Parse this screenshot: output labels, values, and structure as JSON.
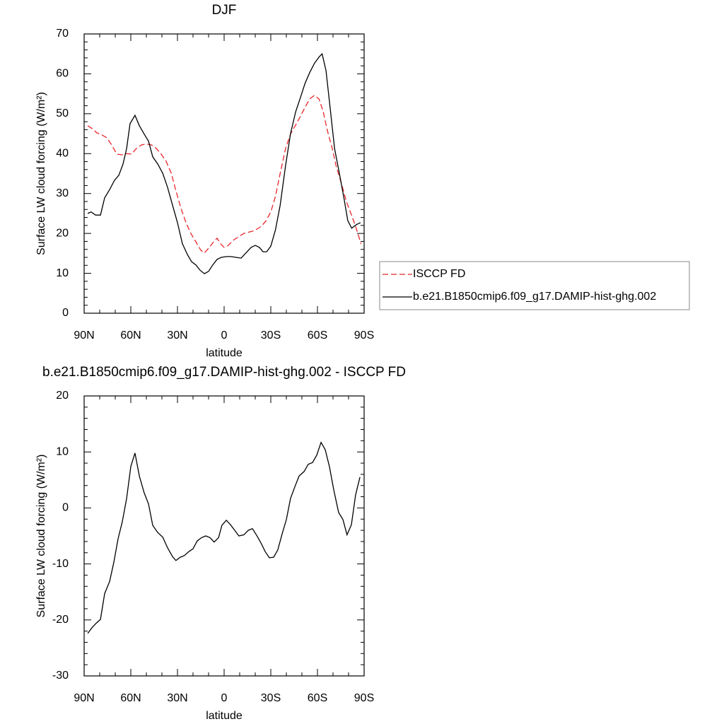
{
  "chart_data": [
    {
      "type": "line",
      "title": "DJF",
      "xlabel": "latitude",
      "ylabel": "Surface LW cloud forcing (W/m²)",
      "xlim": [
        90,
        -90
      ],
      "xticks": [
        {
          "value": 90,
          "label": "90N"
        },
        {
          "value": 60,
          "label": "60N"
        },
        {
          "value": 30,
          "label": "30N"
        },
        0,
        {
          "value": -30,
          "label": "30S"
        },
        {
          "value": -60,
          "label": "60S"
        },
        {
          "value": -90,
          "label": "90S"
        }
      ],
      "ylim": [
        0,
        70
      ],
      "yticks": [
        0,
        10,
        20,
        30,
        40,
        50,
        60,
        70
      ],
      "legend": "right",
      "series": [
        {
          "name": "ISCCP FD",
          "color": "#e8262b",
          "dash": true,
          "x": [
            87.7,
            85,
            81.8,
            78.6,
            75.5,
            72.3,
            69,
            66,
            62.7,
            59.5,
            56.4,
            53,
            50,
            46.8,
            43.6,
            40.5,
            37.3,
            34,
            31,
            27.7,
            24.5,
            21.4,
            18.2,
            15,
            12.7,
            9.5,
            6.8,
            4.5,
            2.3,
            0,
            -2.7,
            -5.9,
            -12.7,
            -19.5,
            -24,
            -27,
            -30,
            -33,
            -36,
            -39.5,
            -42.7,
            -46,
            -49,
            -52,
            -55,
            -58,
            -61,
            -63.6,
            -66.4,
            -69.5,
            -72,
            -75.5,
            -78.6,
            -82,
            -84.5,
            -88
          ],
          "values": [
            47,
            46.3,
            45.2,
            44.7,
            44,
            42.2,
            39.9,
            39.7,
            40,
            39.9,
            41.3,
            42.2,
            42.4,
            42.2,
            41.3,
            39.9,
            38.1,
            35.1,
            30.7,
            26.2,
            22.7,
            20,
            17.9,
            15.8,
            15.1,
            16.5,
            17.9,
            18.8,
            17.4,
            16.5,
            17,
            18.3,
            20,
            20.7,
            21.8,
            23.2,
            25.4,
            29.3,
            35,
            41.3,
            44.9,
            47.2,
            49.3,
            51.6,
            53.7,
            54.6,
            53.7,
            50.7,
            45.7,
            41.3,
            36.9,
            32.4,
            28,
            24.5,
            21.8,
            17.4
          ]
        },
        {
          "name": "b.e21.B1850cmip6.f09_g17.DAMIP-hist-ghg.002",
          "color": "#000000",
          "dash": false,
          "x": [
            87.7,
            85.5,
            82.7,
            79.5,
            76.8,
            73.6,
            70.5,
            67.7,
            65,
            62.7,
            60.5,
            57.3,
            54.5,
            51.4,
            48.6,
            45.9,
            42.7,
            39.5,
            36.4,
            33.2,
            30,
            26.8,
            23.6,
            20.9,
            18.2,
            15.5,
            12.7,
            10,
            7.3,
            4.5,
            1.8,
            -1.4,
            -4.5,
            -7.7,
            -10.9,
            -14,
            -17.3,
            -20,
            -22.7,
            -25,
            -27.3,
            -30,
            -33,
            -36,
            -39.5,
            -42.7,
            -46,
            -49,
            -52,
            -55,
            -58,
            -61,
            -63,
            -65.5,
            -68,
            -71,
            -74.5,
            -77,
            -79.5,
            -82,
            -85,
            -87.7
          ],
          "values": [
            25,
            25.4,
            24.6,
            24.6,
            28.9,
            31,
            33.3,
            34.6,
            37.4,
            41.3,
            47.5,
            49.6,
            47,
            44.9,
            43.1,
            39.2,
            37.4,
            35.1,
            31.6,
            27.1,
            22.7,
            17.4,
            14.7,
            12.9,
            12.1,
            10.8,
            9.9,
            10.5,
            12.1,
            13.5,
            14,
            14.2,
            14.2,
            14,
            13.8,
            15.1,
            16.5,
            17,
            16.5,
            15.4,
            15.4,
            16.8,
            20.9,
            27,
            37,
            45,
            50.5,
            54,
            57.6,
            60.3,
            62.6,
            64.2,
            65,
            60.8,
            52,
            41.3,
            34.2,
            28.9,
            23.2,
            21.3,
            22.2,
            22.7
          ]
        }
      ]
    },
    {
      "type": "line",
      "title": "b.e21.B1850cmip6.f09_g17.DAMIP-hist-ghg.002 - ISCCP FD",
      "xlabel": "latitude",
      "ylabel": "Surface LW cloud forcing (W/m²)",
      "xlim": [
        90,
        -90
      ],
      "xticks": [
        {
          "value": 90,
          "label": "90N"
        },
        {
          "value": 60,
          "label": "60N"
        },
        {
          "value": 30,
          "label": "30N"
        },
        0,
        {
          "value": -30,
          "label": "30S"
        },
        {
          "value": -60,
          "label": "60S"
        },
        {
          "value": -90,
          "label": "90S"
        }
      ],
      "ylim": [
        -30,
        20
      ],
      "yticks": [
        -30,
        -20,
        -10,
        0,
        10,
        20
      ],
      "series": [
        {
          "color": "#000000",
          "dash": false,
          "x": [
            87.7,
            85,
            82.3,
            79.5,
            76.8,
            73.6,
            70.9,
            68.2,
            65.5,
            62.7,
            60,
            57.3,
            54.5,
            51.4,
            48.6,
            45.9,
            42.7,
            39.5,
            36.4,
            33.2,
            31,
            28.2,
            25.5,
            22.7,
            20,
            17.3,
            14.5,
            11.8,
            9.1,
            6.4,
            3.6,
            1.4,
            -1.4,
            -4.1,
            -6.8,
            -9.5,
            -12.7,
            -15.5,
            -18.2,
            -20.9,
            -23.6,
            -26.4,
            -29.1,
            -31.8,
            -34.5,
            -37.3,
            -40,
            -42.7,
            -45.5,
            -48.2,
            -51.4,
            -54.1,
            -56.8,
            -59.5,
            -62.3,
            -65,
            -67.7,
            -70.5,
            -73.6,
            -76.4,
            -79,
            -81.8,
            -84.5,
            -87.3
          ],
          "values": [
            -22.4,
            -21.4,
            -20.6,
            -19.9,
            -15.3,
            -13.1,
            -9.7,
            -5.5,
            -2.5,
            1.7,
            7.4,
            9.8,
            5.7,
            2.7,
            0.7,
            -3.1,
            -4.4,
            -5.2,
            -7.1,
            -8.7,
            -9.4,
            -8.8,
            -8.5,
            -7.8,
            -7.3,
            -5.9,
            -5.3,
            -5,
            -5.3,
            -6.1,
            -5.3,
            -3.1,
            -2.2,
            -3,
            -4,
            -5,
            -4.8,
            -4,
            -3.7,
            -4.9,
            -6.2,
            -7.8,
            -8.9,
            -8.8,
            -7.5,
            -4.6,
            -2.1,
            1.7,
            3.8,
            5.7,
            6.5,
            7.8,
            8.1,
            9.4,
            11.7,
            10.4,
            7.4,
            3.2,
            -0.8,
            -2.1,
            -4.8,
            -3,
            2.3,
            5.5
          ]
        }
      ]
    }
  ]
}
